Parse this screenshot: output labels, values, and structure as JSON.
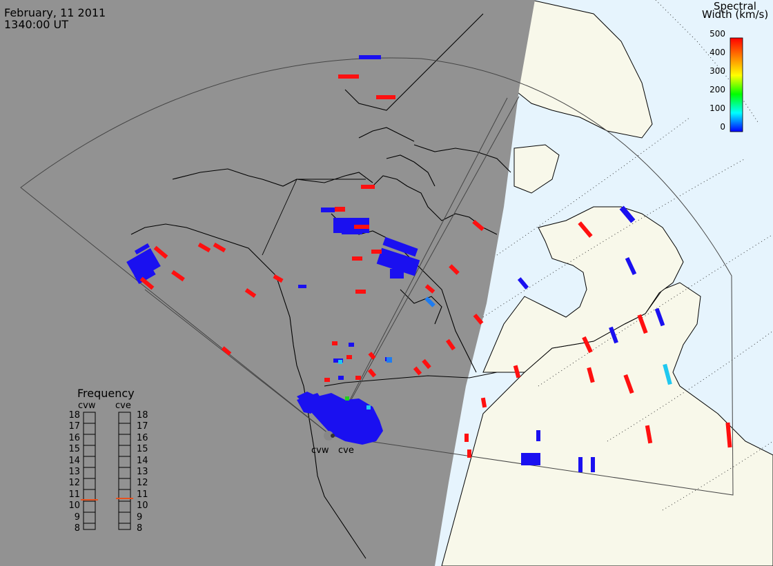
{
  "header": {
    "date": "February, 11 2011",
    "time": "1340:00 UT"
  },
  "colorbar": {
    "title_line1": "Spectral",
    "title_line2": "Width (km/s)",
    "ticks": [
      "500",
      "400",
      "300",
      "200",
      "100",
      "0"
    ]
  },
  "frequency_panel": {
    "title": "Frequency",
    "radars": [
      {
        "code": "cvw",
        "current_mhz": 10.5
      },
      {
        "code": "cve",
        "current_mhz": 10.5
      }
    ],
    "scale": [
      "18",
      "17",
      "16",
      "15",
      "14",
      "13",
      "12",
      "11",
      "10",
      "9",
      "8"
    ]
  },
  "site_labels": {
    "west": "cvw",
    "east": "cve"
  },
  "colors": {
    "night": "#929292",
    "land_day": "#f8f8ea",
    "ocean_day": "#e6f4fd",
    "low_width": "#1a10f0",
    "high_width": "#ff1010",
    "mid_width": "#20c8f0",
    "marker": "#e8501c"
  }
}
